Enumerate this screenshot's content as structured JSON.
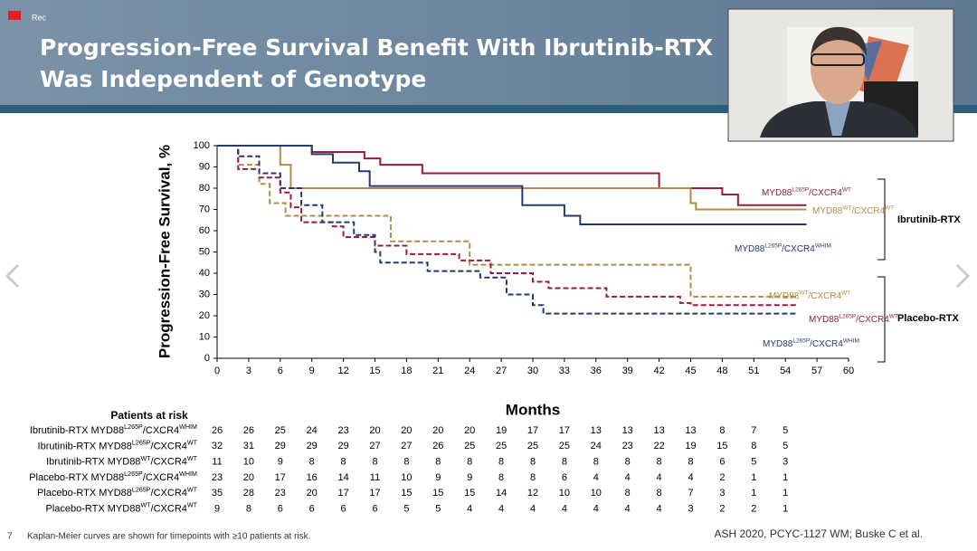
{
  "header": {
    "badge": "Rec",
    "title_lines": [
      "Progression-Free Survival Benefit With Ibrutinib-RTX",
      "Was Independent of Genotype"
    ]
  },
  "chart_data": {
    "type": "line",
    "step": true,
    "y_label": "Progression-Free Survival, %",
    "x_label": "Months",
    "xlim": [
      0,
      60
    ],
    "xticks": [
      0,
      3,
      6,
      9,
      12,
      15,
      18,
      21,
      24,
      27,
      30,
      33,
      36,
      39,
      42,
      45,
      48,
      51,
      54,
      57,
      60
    ],
    "ylim": [
      0,
      100
    ],
    "yticks": [
      0,
      10,
      20,
      30,
      40,
      50,
      60,
      70,
      80,
      90,
      100
    ],
    "grid": false,
    "series": [
      {
        "name_parts": [
          "MYD88",
          "L265P",
          "/CXCR4",
          "WT"
        ],
        "color": "#9b1c3c",
        "dashed": false,
        "x": [
          0,
          9,
          14,
          15.5,
          19.5,
          42,
          48,
          49.5,
          56
        ],
        "values": [
          100,
          97,
          94,
          91,
          87,
          80,
          77,
          72,
          72
        ]
      },
      {
        "name_parts": [
          "MYD88",
          "WT",
          "/CXCR4",
          "WT"
        ],
        "color": "#b08d45",
        "dashed": false,
        "x": [
          0,
          6,
          7,
          45,
          45.5,
          56
        ],
        "values": [
          100,
          91,
          80,
          73,
          70,
          70
        ]
      },
      {
        "name_parts": [
          "MYD88",
          "L265P",
          "/CXCR4",
          "WHIM"
        ],
        "color": "#263a6e",
        "dashed": false,
        "x": [
          0,
          9,
          11,
          13.5,
          14.5,
          29,
          33,
          34.5,
          56
        ],
        "values": [
          100,
          96,
          92,
          88,
          81,
          72,
          67,
          63,
          63
        ]
      },
      {
        "name_parts": [
          "MYD88",
          "WT",
          "/CXCR4",
          "WT"
        ],
        "color": "#b08d45",
        "dashed": true,
        "x": [
          0,
          2,
          4,
          5,
          6.5,
          16.5,
          24,
          45,
          55
        ],
        "values": [
          100,
          91,
          82,
          73,
          67,
          55,
          44,
          29,
          29
        ]
      },
      {
        "name_parts": [
          "MYD88",
          "L265P",
          "/CXCR4",
          "WT"
        ],
        "color": "#9b1c3c",
        "dashed": true,
        "x": [
          0,
          2,
          4,
          6,
          7,
          8,
          11,
          12,
          15,
          18,
          23,
          26,
          30,
          31.5,
          37,
          44,
          45,
          55
        ],
        "values": [
          100,
          89,
          85,
          78,
          71,
          64,
          62,
          57,
          53,
          49,
          46,
          40,
          36,
          33,
          29,
          26,
          25,
          25
        ]
      },
      {
        "name_parts": [
          "MYD88",
          "L265P",
          "/CXCR4",
          "WHIM"
        ],
        "color": "#263a6e",
        "dashed": true,
        "x": [
          0,
          2,
          4,
          6,
          8,
          10,
          13,
          15,
          15.5,
          20,
          25,
          27.5,
          30,
          31,
          55
        ],
        "values": [
          100,
          95,
          87,
          80,
          72,
          64,
          58,
          50,
          45,
          41,
          38,
          30,
          25,
          21,
          21
        ]
      }
    ],
    "groups": [
      "Ibrutinib-RTX",
      "Placebo-RTX"
    ]
  },
  "risk_table": {
    "title": "Patients at risk",
    "rows": [
      {
        "label_parts": [
          "Ibrutinib-RTX MYD88",
          "L265P",
          "/CXCR4",
          "WHIM"
        ],
        "counts": [
          26,
          26,
          25,
          24,
          23,
          20,
          20,
          20,
          20,
          19,
          17,
          17,
          13,
          13,
          13,
          13,
          8,
          7,
          5
        ]
      },
      {
        "label_parts": [
          "Ibrutinib-RTX MYD88",
          "L265P",
          "/CXCR4",
          "WT"
        ],
        "counts": [
          32,
          31,
          29,
          29,
          29,
          27,
          27,
          26,
          25,
          25,
          25,
          25,
          24,
          23,
          22,
          19,
          15,
          8,
          5
        ]
      },
      {
        "label_parts": [
          "Ibrutinib-RTX MYD88",
          "WT",
          "/CXCR4",
          "WT"
        ],
        "counts": [
          11,
          10,
          9,
          8,
          8,
          8,
          8,
          8,
          8,
          8,
          8,
          8,
          8,
          8,
          8,
          8,
          6,
          5,
          3
        ]
      },
      {
        "label_parts": [
          "Placebo-RTX MYD88",
          "L265P",
          "/CXCR4",
          "WHIM"
        ],
        "counts": [
          23,
          20,
          17,
          16,
          14,
          11,
          10,
          9,
          9,
          8,
          8,
          6,
          4,
          4,
          4,
          4,
          2,
          1,
          1
        ]
      },
      {
        "label_parts": [
          "Placebo-RTX MYD88",
          "L265P",
          "/CXCR4",
          "WT"
        ],
        "counts": [
          35,
          28,
          23,
          20,
          17,
          17,
          15,
          15,
          15,
          14,
          12,
          10,
          10,
          8,
          8,
          7,
          3,
          1,
          1
        ]
      },
      {
        "label_parts": [
          "Placebo-RTX MYD88",
          "WT",
          "/CXCR4",
          "WT"
        ],
        "counts": [
          9,
          8,
          6,
          6,
          6,
          6,
          5,
          5,
          4,
          4,
          4,
          4,
          4,
          4,
          4,
          3,
          2,
          2,
          1
        ]
      }
    ]
  },
  "footer": {
    "slide_number": "7",
    "note": "Kaplan-Meier curves are shown for timepoints with ≥10 patients at risk.",
    "source": "ASH 2020, PCYC-1127 WM; Buske C et al."
  }
}
